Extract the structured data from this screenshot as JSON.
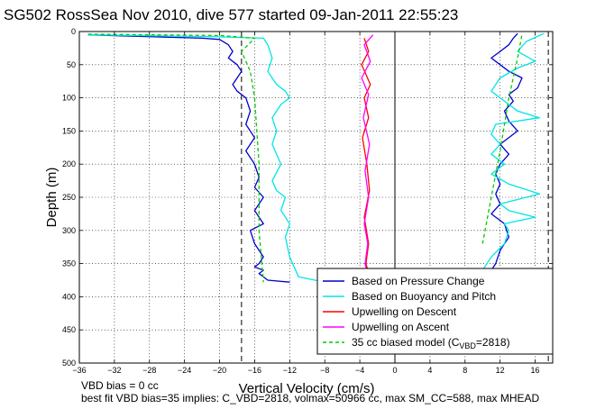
{
  "chart_data": {
    "type": "line",
    "title": "SG502 RossSea Nov 2010, dive 577 started 09-Jan-2011 22:55:23",
    "xlabel": "Vertical Velocity (cm/s)",
    "ylabel": "Depth (m)",
    "xlim": [
      -36,
      18
    ],
    "ylim": [
      500,
      0
    ],
    "xticks": [
      -36,
      -32,
      -28,
      -24,
      -20,
      -16,
      -12,
      -8,
      -4,
      0,
      4,
      8,
      12,
      16
    ],
    "yticks": [
      0,
      50,
      100,
      150,
      200,
      250,
      300,
      350,
      400,
      450,
      500
    ],
    "grid": true,
    "legend_position": "bottom-right",
    "reference_lines": [
      {
        "x": -17.5,
        "style": "dashed",
        "color": "#000000"
      },
      {
        "x": 0,
        "style": "solid",
        "color": "#000000"
      },
      {
        "x": 17.5,
        "style": "dashed",
        "color": "#000000"
      }
    ],
    "series": [
      {
        "name": "Based on Pressure Change",
        "color": "#0000cc",
        "branches": [
          {
            "x": [
              -35,
              -22,
              -20,
              -19,
              -18.5,
              -19,
              -18,
              -17.5,
              -18,
              -18.5,
              -18,
              -17,
              -16.5,
              -17,
              -16,
              -17,
              -16,
              -15.5,
              -16,
              -15,
              -16,
              -15,
              -16.5,
              -16,
              -15,
              -15.5,
              -16,
              -15,
              -15.5,
              -14.5,
              -12
            ],
            "y": [
              5,
              10,
              12,
              20,
              30,
              40,
              50,
              60,
              70,
              80,
              90,
              100,
              120,
              140,
              160,
              180,
              200,
              220,
              235,
              250,
              270,
              290,
              300,
              320,
              340,
              350,
              355,
              360,
              365,
              375,
              378
            ]
          },
          {
            "x": [
              10.5,
              11.5,
              12,
              13,
              12.5,
              11,
              12,
              11.5,
              12,
              11.5,
              12,
              13,
              12,
              14,
              13,
              12.5,
              13.5,
              13,
              14,
              14.5,
              13,
              12,
              11,
              12,
              13,
              13.5,
              14
            ],
            "y": [
              370,
              350,
              330,
              310,
              290,
              275,
              260,
              245,
              230,
              215,
              200,
              185,
              170,
              150,
              135,
              120,
              105,
              95,
              85,
              70,
              60,
              50,
              40,
              30,
              20,
              10,
              3
            ]
          }
        ]
      },
      {
        "name": "Based on Buoyancy and Pitch",
        "color": "#00e5e5",
        "branches": [
          {
            "x": [
              -35,
              -20,
              -15,
              -14.5,
              -14,
              -14.5,
              -13.5,
              -12.5,
              -12,
              -13,
              -14,
              -13.5,
              -14,
              -13,
              -14,
              -13.5,
              -12.5,
              -13,
              -12,
              -12.5,
              -12,
              -11,
              -8
            ],
            "y": [
              5,
              8,
              10,
              20,
              40,
              60,
              80,
              90,
              100,
              110,
              130,
              150,
              170,
              200,
              225,
              240,
              250,
              270,
              290,
              310,
              340,
              370,
              378
            ]
          },
          {
            "x": [
              10,
              11,
              12.5,
              13,
              12.5,
              16,
              13,
              12,
              16.5,
              13,
              11,
              12.5,
              11,
              12,
              11,
              11.5,
              16.5,
              14,
              13,
              11,
              12,
              14,
              16,
              14,
              15,
              17
            ],
            "y": [
              360,
              340,
              320,
              300,
              290,
              280,
              270,
              260,
              245,
              230,
              215,
              200,
              185,
              170,
              155,
              140,
              130,
              120,
              110,
              90,
              70,
              55,
              45,
              30,
              15,
              3
            ]
          }
        ]
      },
      {
        "name": "Upwelling on Descent",
        "color": "#ff0000",
        "branches": [
          {
            "x": [
              -3.5,
              -3,
              -3.8,
              -2.8,
              -3.5,
              -3,
              -3.7,
              -3.2,
              -2.9,
              -3.5,
              -3,
              -3.3,
              -2.8
            ],
            "y": [
              10,
              30,
              50,
              80,
              100,
              130,
              160,
              200,
              240,
              280,
              320,
              350,
              375
            ]
          }
        ]
      },
      {
        "name": "Upwelling on Ascent",
        "color": "#ff00ff",
        "branches": [
          {
            "x": [
              -2.5,
              -3.5,
              -2.8,
              -3.8,
              -3,
              -3.6,
              -2.9,
              -3.4,
              -3,
              -3.5,
              -3.1,
              -3.4,
              -2.9
            ],
            "y": [
              5,
              20,
              45,
              70,
              95,
              130,
              170,
              210,
              250,
              290,
              320,
              350,
              378
            ]
          }
        ]
      },
      {
        "name": "35 cc biased model (C_VBD=2818)",
        "color": "#00cc00",
        "style": "dashed",
        "branches": [
          {
            "x": [
              -35,
              -20,
              -16,
              -17.5,
              -16.5,
              -16,
              -15.5,
              -15.5,
              -15
            ],
            "y": [
              4,
              6,
              10,
              30,
              60,
              100,
              200,
              300,
              378
            ]
          },
          {
            "x": [
              10,
              11,
              12,
              13,
              14,
              14.5
            ],
            "y": [
              320,
              250,
              180,
              100,
              40,
              4
            ]
          }
        ]
      }
    ],
    "legend": {
      "entries": [
        "Based on Pressure Change",
        "Based on Buoyancy and Pitch",
        "Upwelling on Descent",
        "Upwelling on Ascent"
      ],
      "model_entry_prefix": "35 cc biased model (C",
      "model_entry_sub": "VBD",
      "model_entry_suffix": "=2818)"
    },
    "footer": [
      "VBD bias = 0 cc",
      "best fit VBD bias=35 implies: C_VBD=2818, volmax=50966 cc, max SM_CC=588, max MHEAD"
    ]
  }
}
